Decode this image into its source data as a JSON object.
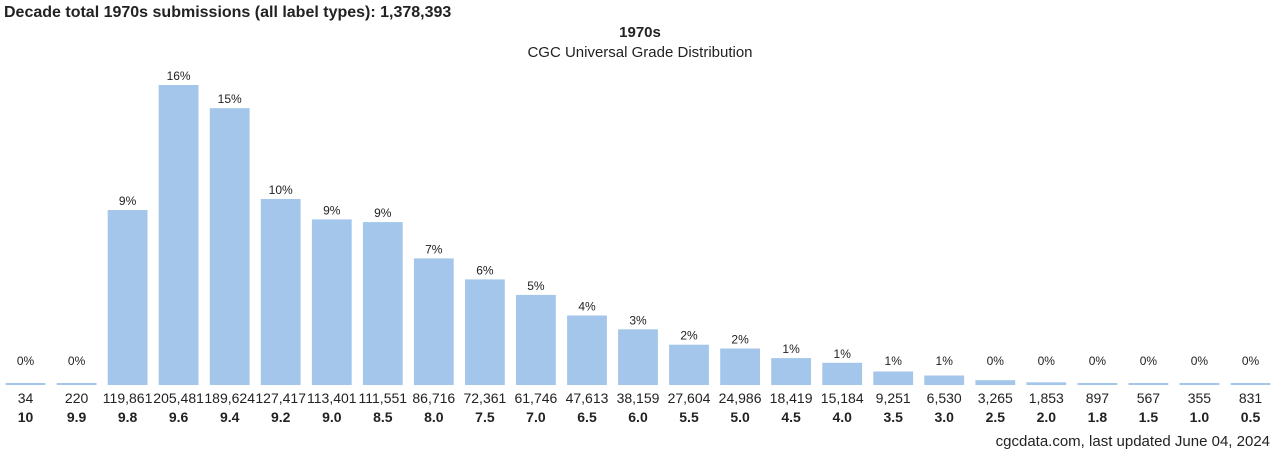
{
  "header": {
    "decade_total": "Decade total 1970s submissions (all label types): 1,378,393",
    "title": "1970s",
    "subtitle": "CGC Universal Grade Distribution"
  },
  "footer": {
    "source": "cgcdata.com, last updated June 04, 2024"
  },
  "colors": {
    "bar": "#a4c6ea",
    "text": "#222222"
  },
  "chart_data": {
    "type": "bar",
    "title": "1970s",
    "subtitle": "CGC Universal Grade Distribution",
    "categories": [
      "10",
      "9.9",
      "9.8",
      "9.6",
      "9.4",
      "9.2",
      "9.0",
      "8.5",
      "8.0",
      "7.5",
      "7.0",
      "6.5",
      "6.0",
      "5.5",
      "5.0",
      "4.5",
      "4.0",
      "3.5",
      "3.0",
      "2.5",
      "2.0",
      "1.8",
      "1.5",
      "1.0",
      "0.5"
    ],
    "values": [
      34,
      220,
      119861,
      205481,
      189624,
      127417,
      113401,
      111551,
      86716,
      72361,
      61746,
      47613,
      38159,
      27604,
      24986,
      18419,
      15184,
      9251,
      6530,
      3265,
      1853,
      897,
      567,
      355,
      831
    ],
    "count_labels": [
      "34",
      "220",
      "119,861",
      "205,481",
      "189,624",
      "127,417",
      "113,401",
      "111,551",
      "86,716",
      "72,361",
      "61,746",
      "47,613",
      "38,159",
      "27,604",
      "24,986",
      "18,419",
      "15,184",
      "9,251",
      "6,530",
      "3,265",
      "1,853",
      "897",
      "567",
      "355",
      "831"
    ],
    "percent_labels": [
      "0%",
      "0%",
      "9%",
      "16%",
      "15%",
      "10%",
      "9%",
      "9%",
      "7%",
      "6%",
      "5%",
      "4%",
      "3%",
      "2%",
      "2%",
      "1%",
      "1%",
      "1%",
      "1%",
      "0%",
      "0%",
      "0%",
      "0%",
      "0%",
      "0%"
    ],
    "xlabel": "",
    "ylabel": "",
    "grid": false,
    "legend": "none"
  }
}
